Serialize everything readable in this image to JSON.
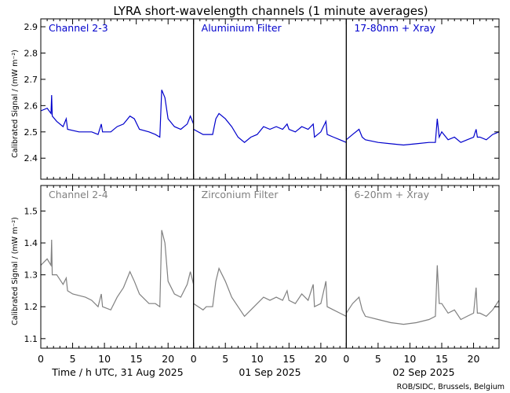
{
  "title": "LYRA short-wavelength channels (1 minute averages)",
  "ylabel": "Calibrated Signal / (mW m⁻²)",
  "xlabel_day1": "Time / h UTC, 31 Aug 2025",
  "xlabel_day2": "01 Sep 2025",
  "xlabel_day3": "02 Sep 2025",
  "credit": "ROB/SIDC, Brussels, Belgium",
  "colors": {
    "top": "#0000cc",
    "bottom": "#808080",
    "axis": "#000000"
  },
  "chart_data": {
    "type": "line",
    "x_ticks": [
      "0",
      "5",
      "10",
      "15",
      "20"
    ],
    "x_range_hours": [
      0,
      72
    ],
    "rows": [
      {
        "ylim": [
          2.32,
          2.93
        ],
        "yticks": [
          "2.4",
          "2.5",
          "2.6",
          "2.7",
          "2.8",
          "2.9"
        ],
        "ytick_values": [
          2.4,
          2.5,
          2.6,
          2.7,
          2.8,
          2.9
        ],
        "color_key": "top",
        "series": [
          {
            "name": "Channel 2-3",
            "values": [
              [
                0,
                2.58
              ],
              [
                1,
                2.59
              ],
              [
                1.6,
                2.57
              ],
              [
                1.7,
                2.64
              ],
              [
                1.8,
                2.56
              ],
              [
                2.5,
                2.54
              ],
              [
                3.5,
                2.52
              ],
              [
                4,
                2.55
              ],
              [
                4.2,
                2.51
              ],
              [
                6,
                2.5
              ],
              [
                8,
                2.5
              ],
              [
                9,
                2.49
              ],
              [
                9.5,
                2.53
              ],
              [
                9.7,
                2.5
              ],
              [
                11,
                2.5
              ],
              [
                12,
                2.52
              ],
              [
                13,
                2.53
              ],
              [
                14,
                2.56
              ],
              [
                14.7,
                2.55
              ],
              [
                15.5,
                2.51
              ],
              [
                17,
                2.5
              ],
              [
                18,
                2.49
              ],
              [
                18.7,
                2.48
              ],
              [
                19,
                2.66
              ],
              [
                19.5,
                2.63
              ],
              [
                20,
                2.55
              ],
              [
                21,
                2.52
              ],
              [
                22,
                2.51
              ],
              [
                23,
                2.53
              ],
              [
                23.5,
                2.56
              ],
              [
                24,
                2.53
              ]
            ]
          },
          {
            "name": "Aluminium Filter",
            "values": [
              [
                24,
                2.51
              ],
              [
                25.5,
                2.49
              ],
              [
                26,
                2.49
              ],
              [
                27,
                2.49
              ],
              [
                27.5,
                2.55
              ],
              [
                28,
                2.57
              ],
              [
                29,
                2.55
              ],
              [
                30,
                2.52
              ],
              [
                31,
                2.48
              ],
              [
                32,
                2.46
              ],
              [
                33,
                2.48
              ],
              [
                34,
                2.49
              ],
              [
                35,
                2.52
              ],
              [
                36,
                2.51
              ],
              [
                37,
                2.52
              ],
              [
                38,
                2.51
              ],
              [
                38.7,
                2.53
              ],
              [
                39,
                2.51
              ],
              [
                40,
                2.5
              ],
              [
                41,
                2.52
              ],
              [
                42,
                2.51
              ],
              [
                42.8,
                2.53
              ],
              [
                43,
                2.48
              ],
              [
                44,
                2.5
              ],
              [
                44.8,
                2.54
              ],
              [
                45,
                2.49
              ],
              [
                46,
                2.48
              ],
              [
                47,
                2.47
              ],
              [
                48,
                2.46
              ]
            ]
          },
          {
            "name": "17-80nm + Xray",
            "values": [
              [
                48,
                2.47
              ],
              [
                49,
                2.49
              ],
              [
                50,
                2.51
              ],
              [
                50.5,
                2.48
              ],
              [
                51,
                2.47
              ],
              [
                53,
                2.46
              ],
              [
                55,
                2.455
              ],
              [
                57,
                2.45
              ],
              [
                59,
                2.455
              ],
              [
                61,
                2.46
              ],
              [
                62,
                2.46
              ],
              [
                62.3,
                2.55
              ],
              [
                62.6,
                2.48
              ],
              [
                63,
                2.5
              ],
              [
                64,
                2.47
              ],
              [
                65,
                2.48
              ],
              [
                66,
                2.46
              ],
              [
                67,
                2.47
              ],
              [
                68,
                2.48
              ],
              [
                68.4,
                2.51
              ],
              [
                68.6,
                2.48
              ],
              [
                69,
                2.48
              ],
              [
                70,
                2.47
              ],
              [
                71,
                2.49
              ],
              [
                72,
                2.5
              ]
            ]
          }
        ]
      },
      {
        "ylim": [
          1.07,
          1.58
        ],
        "yticks": [
          "1.1",
          "1.2",
          "1.3",
          "1.4",
          "1.5"
        ],
        "ytick_values": [
          1.1,
          1.2,
          1.3,
          1.4,
          1.5
        ],
        "color_key": "bottom",
        "series": [
          {
            "name": "Channel 2-4",
            "values": [
              [
                0,
                1.33
              ],
              [
                1,
                1.35
              ],
              [
                1.6,
                1.33
              ],
              [
                1.7,
                1.41
              ],
              [
                1.8,
                1.3
              ],
              [
                2.5,
                1.3
              ],
              [
                3.5,
                1.27
              ],
              [
                4,
                1.29
              ],
              [
                4.2,
                1.25
              ],
              [
                5,
                1.24
              ],
              [
                7,
                1.23
              ],
              [
                8,
                1.22
              ],
              [
                9,
                1.2
              ],
              [
                9.5,
                1.24
              ],
              [
                9.7,
                1.2
              ],
              [
                11,
                1.19
              ],
              [
                12,
                1.23
              ],
              [
                13,
                1.26
              ],
              [
                14,
                1.31
              ],
              [
                14.7,
                1.28
              ],
              [
                15.5,
                1.24
              ],
              [
                17,
                1.21
              ],
              [
                18,
                1.21
              ],
              [
                18.7,
                1.2
              ],
              [
                19,
                1.44
              ],
              [
                19.5,
                1.4
              ],
              [
                20,
                1.28
              ],
              [
                21,
                1.24
              ],
              [
                22,
                1.23
              ],
              [
                23,
                1.27
              ],
              [
                23.5,
                1.31
              ],
              [
                24,
                1.27
              ]
            ]
          },
          {
            "name": "Zirconium Filter",
            "values": [
              [
                24,
                1.21
              ],
              [
                25.5,
                1.19
              ],
              [
                26,
                1.2
              ],
              [
                27,
                1.2
              ],
              [
                27.5,
                1.28
              ],
              [
                28,
                1.32
              ],
              [
                29,
                1.28
              ],
              [
                30,
                1.23
              ],
              [
                31,
                1.2
              ],
              [
                32,
                1.17
              ],
              [
                33,
                1.19
              ],
              [
                34,
                1.21
              ],
              [
                35,
                1.23
              ],
              [
                36,
                1.22
              ],
              [
                37,
                1.23
              ],
              [
                38,
                1.22
              ],
              [
                38.7,
                1.25
              ],
              [
                39,
                1.22
              ],
              [
                40,
                1.21
              ],
              [
                41,
                1.24
              ],
              [
                42,
                1.22
              ],
              [
                42.8,
                1.27
              ],
              [
                43,
                1.2
              ],
              [
                44,
                1.21
              ],
              [
                44.8,
                1.28
              ],
              [
                45,
                1.2
              ],
              [
                46,
                1.19
              ],
              [
                47,
                1.18
              ],
              [
                48,
                1.17
              ]
            ]
          },
          {
            "name": "6-20nm + Xray",
            "values": [
              [
                48,
                1.18
              ],
              [
                49,
                1.21
              ],
              [
                50,
                1.23
              ],
              [
                50.5,
                1.19
              ],
              [
                51,
                1.17
              ],
              [
                53,
                1.16
              ],
              [
                55,
                1.15
              ],
              [
                57,
                1.145
              ],
              [
                59,
                1.15
              ],
              [
                61,
                1.16
              ],
              [
                62,
                1.17
              ],
              [
                62.3,
                1.33
              ],
              [
                62.6,
                1.21
              ],
              [
                63,
                1.21
              ],
              [
                64,
                1.18
              ],
              [
                65,
                1.19
              ],
              [
                66,
                1.16
              ],
              [
                67,
                1.17
              ],
              [
                68,
                1.18
              ],
              [
                68.4,
                1.26
              ],
              [
                68.6,
                1.18
              ],
              [
                69,
                1.18
              ],
              [
                70,
                1.17
              ],
              [
                71,
                1.19
              ],
              [
                72,
                1.22
              ]
            ]
          }
        ]
      }
    ]
  }
}
